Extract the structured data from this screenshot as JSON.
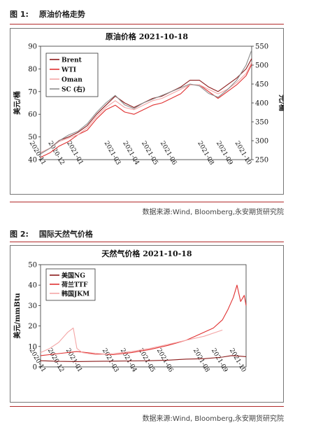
{
  "figure1": {
    "number": "图 1:",
    "caption": "原油价格走势",
    "source": "数据来源:Wind, Bloomberg,永安期货研究院"
  },
  "figure2": {
    "number": "图 2:",
    "caption": "国际天然气价格",
    "source": "数据来源:Wind, Bloomberg,永安期货研究院"
  },
  "colors": {
    "rule": "#b22a2a",
    "dark_red": "#8b1a1a",
    "red": "#e03030",
    "pink": "#f4a6a6",
    "grey": "#8c8c8c"
  },
  "chart_data": [
    {
      "type": "line",
      "title": "原油价格 2021-10-18",
      "ylabel": "美元/桶",
      "y2label": "元/桶",
      "ylim": [
        40,
        90
      ],
      "yticks": [
        40,
        50,
        60,
        70,
        80,
        90
      ],
      "y2lim": [
        250,
        550
      ],
      "y2ticks": [
        250,
        300,
        350,
        400,
        450,
        500,
        550
      ],
      "x_tick_labels": [
        "2020-11",
        "2020-12",
        "2021-01",
        "2021-03",
        "2021-04",
        "2021-05",
        "2021-06",
        "2021-08",
        "2021-09",
        "2021-10"
      ],
      "x_tick_pos": [
        0,
        1,
        2,
        4,
        5,
        6,
        7,
        9,
        10,
        11
      ],
      "grid": false,
      "legend_placement": "top-left",
      "series": [
        {
          "name": "Brent",
          "axis": "left",
          "color": "#8b1a1a",
          "x": [
            0,
            0.5,
            1,
            1.5,
            2,
            2.5,
            3,
            3.5,
            4,
            4.5,
            5,
            5.5,
            6,
            6.5,
            7,
            7.5,
            8,
            8.5,
            9,
            9.5,
            10,
            10.5,
            11,
            11.3
          ],
          "y": [
            43,
            45,
            48.5,
            50,
            52,
            55,
            60,
            64,
            68,
            65,
            63,
            65,
            67,
            68,
            70,
            72,
            75,
            75,
            72,
            70,
            73,
            76,
            80,
            84.5
          ]
        },
        {
          "name": "WTI",
          "axis": "left",
          "color": "#e03030",
          "x": [
            0,
            0.5,
            1,
            1.5,
            2,
            2.5,
            3,
            3.5,
            4,
            4.5,
            5,
            5.5,
            6,
            6.5,
            7,
            7.5,
            8,
            8.5,
            9,
            9.5,
            10,
            10.5,
            11,
            11.3
          ],
          "y": [
            41,
            43,
            46,
            48,
            51,
            53,
            58,
            62,
            64,
            61,
            60,
            62,
            64,
            65,
            67,
            69,
            73,
            73,
            70,
            67,
            70,
            73,
            77,
            82
          ]
        },
        {
          "name": "Oman",
          "axis": "left",
          "color": "#f4a6a6",
          "x": [
            0,
            0.5,
            1,
            1.5,
            2,
            2.5,
            3,
            3.5,
            4,
            4.5,
            5,
            5.5,
            6,
            6.5,
            7,
            7.5,
            8,
            8.5,
            9,
            9.5,
            10,
            10.5,
            11,
            11.3
          ],
          "y": [
            43,
            45,
            48,
            49.5,
            51,
            54,
            59,
            63,
            66,
            63,
            62,
            64,
            66,
            67,
            69,
            71,
            73,
            73,
            71,
            69,
            71,
            74,
            78,
            83
          ]
        },
        {
          "name": "SC (右)",
          "axis": "right",
          "color": "#8c8c8c",
          "x": [
            0,
            0.5,
            1,
            1.5,
            2,
            2.5,
            3,
            3.5,
            4,
            4.5,
            5,
            5.5,
            6,
            6.5,
            7,
            7.5,
            8,
            8.5,
            9,
            9.5,
            10,
            10.5,
            11,
            11.3
          ],
          "y": [
            265,
            280,
            300,
            315,
            325,
            345,
            375,
            400,
            420,
            395,
            385,
            400,
            410,
            420,
            430,
            440,
            450,
            445,
            425,
            415,
            435,
            460,
            500,
            540
          ]
        }
      ]
    },
    {
      "type": "line",
      "title": "天然气价格 2021-10-18",
      "ylabel": "美元/mmBtu",
      "ylim": [
        0,
        50
      ],
      "yticks": [
        0,
        10,
        20,
        30,
        40,
        50
      ],
      "x_tick_labels": [
        "2020-11",
        "2020-12",
        "2021-01",
        "2021-03",
        "2021-04",
        "2021-05",
        "2021-06",
        "2021-08",
        "2021-09",
        "2021-10"
      ],
      "x_tick_pos": [
        0,
        1,
        2,
        4,
        5,
        6,
        7,
        9,
        10,
        11
      ],
      "grid": false,
      "legend_placement": "top-left",
      "series": [
        {
          "name": "美国NG",
          "color": "#8b1a1a",
          "x": [
            0,
            1,
            2,
            3,
            4,
            5,
            6,
            7,
            8,
            9,
            10,
            10.5,
            11,
            11.3
          ],
          "y": [
            3,
            2.7,
            2.6,
            2.7,
            2.8,
            2.9,
            3.0,
            3.3,
            3.8,
            4.0,
            4.8,
            5.5,
            5.2,
            5.0
          ]
        },
        {
          "name": "荷兰TTF",
          "color": "#e03030",
          "x": [
            0,
            1,
            2,
            3,
            4,
            5,
            6,
            7,
            8,
            8.5,
            9,
            9.5,
            10,
            10.3,
            10.6,
            10.8,
            11,
            11.2,
            11.3
          ],
          "y": [
            5.5,
            6.5,
            7.5,
            6.5,
            6.0,
            7.0,
            8.5,
            10.5,
            13,
            15,
            17,
            19,
            23,
            28,
            34,
            40,
            32,
            35,
            30
          ]
        },
        {
          "name": "韩国JKM",
          "color": "#f4a6a6",
          "x": [
            0,
            0.5,
            1,
            1.5,
            1.8,
            2,
            2.3,
            3,
            4,
            5,
            6,
            7,
            8,
            9,
            10
          ],
          "y": [
            7,
            9,
            12,
            17,
            19,
            9,
            7,
            6,
            6.5,
            7.5,
            9,
            11,
            13,
            15,
            18
          ]
        }
      ]
    }
  ]
}
